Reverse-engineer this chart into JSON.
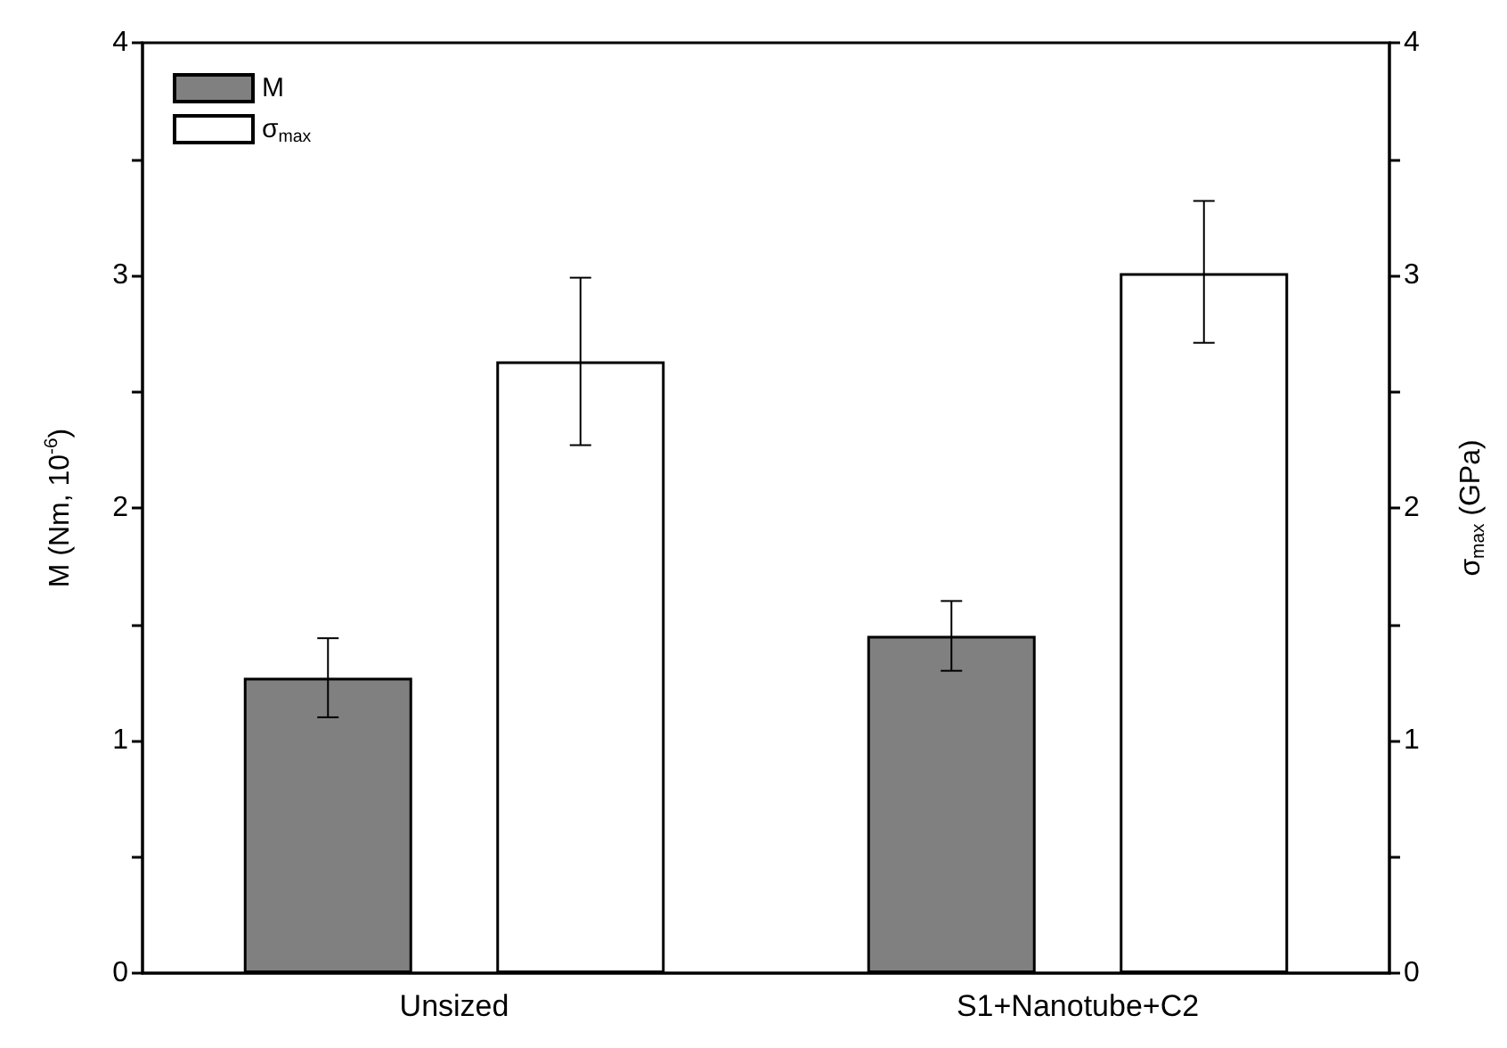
{
  "chart_data": {
    "type": "bar",
    "ylabel": "M (Nm, 10$^{-6}$)",
    "y2label": "σ$_{max}$ (GPa)",
    "categories": [
      "Unsized",
      "S1+Nanotube+C2"
    ],
    "series": [
      {
        "name": "M",
        "color": "#808080",
        "values": [
          1.27,
          1.45
        ],
        "errors": [
          [
            1.1,
            1.44
          ],
          [
            1.3,
            1.6
          ]
        ]
      },
      {
        "name": "σ$_{max}$",
        "color": "#ffffff",
        "axis": "y2",
        "values": [
          2.63,
          3.01
        ],
        "errors": [
          [
            2.27,
            2.99
          ],
          [
            2.71,
            3.32
          ]
        ]
      }
    ],
    "ylim": [
      0,
      4
    ],
    "yticks": [
      0,
      {
        "value": 0.5,
        "label": null
      },
      1,
      {
        "value": 1.5,
        "label": null
      },
      2,
      {
        "value": 2.5,
        "label": null
      },
      3,
      {
        "value": 3.5,
        "label": null
      },
      4
    ],
    "y2lim": [
      0,
      4
    ],
    "y2ticks": [
      0,
      {
        "value": 0.5,
        "label": null
      },
      1,
      {
        "value": 1.5,
        "label": null
      },
      2,
      {
        "value": 2.5,
        "label": null
      },
      3,
      {
        "value": 3.5,
        "label": null
      },
      4
    ],
    "legend": "top left"
  }
}
